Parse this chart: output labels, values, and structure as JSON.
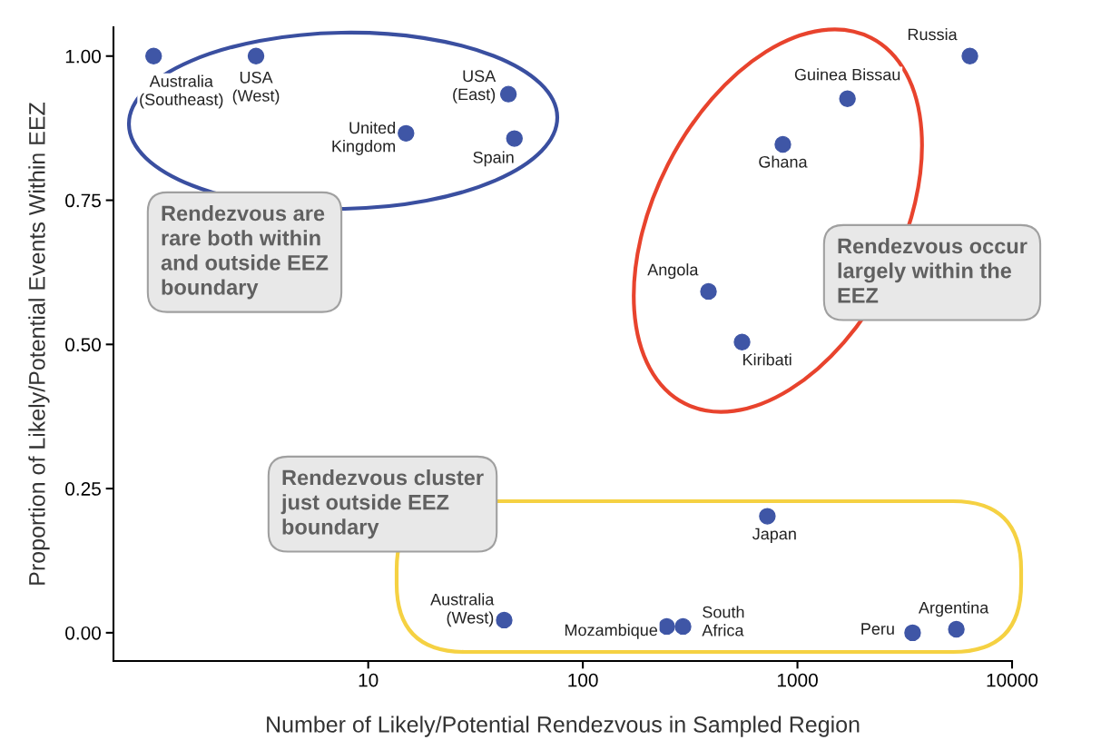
{
  "chart_data": {
    "type": "scatter",
    "xlabel": "Number of Likely/Potential Rendezvous in Sampled Region",
    "ylabel": "Proportion of Likely/Potential Events Within EEZ",
    "log": "x",
    "grid": false,
    "marker": "circle",
    "xlim": [
      0.65,
      10000
    ],
    "xticks": [
      10,
      100,
      1000,
      10000
    ],
    "ylim": [
      -0.049,
      1.05
    ],
    "yticks": [
      {
        "value": 0,
        "label": "0.00"
      },
      {
        "value": 0.25,
        "label": "0.25"
      },
      {
        "value": 0.5,
        "label": "0.50"
      },
      {
        "value": 0.75,
        "label": "0.75"
      },
      {
        "value": 1,
        "label": "1.00"
      }
    ],
    "series": [
      {
        "color": "#3f56a6",
        "x": [
          1.0,
          3.0,
          15,
          45,
          48,
          6360,
          1710,
          855,
          385,
          552,
          724,
          43,
          246,
          293,
          3440,
          5500
        ],
        "values": [
          1.0,
          1.0,
          0.866,
          0.934,
          0.857,
          1.0,
          0.926,
          0.847,
          0.592,
          0.504,
          0.202,
          0.022,
          0.011,
          0.011,
          0.0,
          0.006
        ]
      }
    ],
    "annotations": [
      {
        "text": "Australia\n(Southeast)",
        "x": 1.0,
        "y": 1.0
      },
      {
        "text": "USA\n(West)",
        "x": 3.0,
        "y": 1.0
      },
      {
        "text": "United\nKingdom",
        "x": 15,
        "y": 0.866
      },
      {
        "text": "USA\n(East)",
        "x": 45,
        "y": 0.934
      },
      {
        "text": "Spain",
        "x": 48,
        "y": 0.857
      },
      {
        "text": "Russia",
        "x": 6360,
        "y": 1.0
      },
      {
        "text": "Guinea Bissau",
        "x": 1710,
        "y": 0.926
      },
      {
        "text": "Ghana",
        "x": 855,
        "y": 0.847
      },
      {
        "text": "Angola",
        "x": 385,
        "y": 0.592
      },
      {
        "text": "Kiribati",
        "x": 552,
        "y": 0.504
      },
      {
        "text": "Japan",
        "x": 724,
        "y": 0.202
      },
      {
        "text": "Australia\n(West)",
        "x": 43,
        "y": 0.022
      },
      {
        "text": "Mozambique",
        "x": 246,
        "y": 0.011
      },
      {
        "text": "South\nAfrica",
        "x": 293,
        "y": 0.011
      },
      {
        "text": "Peru",
        "x": 3440,
        "y": 0.0
      },
      {
        "text": "Argentina",
        "x": 5500,
        "y": 0.006
      },
      "Rendezvous are\nrare both within\nand outside EEZ\nboundary",
      "Rendezvous occur\nlargely within the\nEEZ",
      "Rendezvous cluster\njust outside EEZ\nboundary"
    ]
  }
}
